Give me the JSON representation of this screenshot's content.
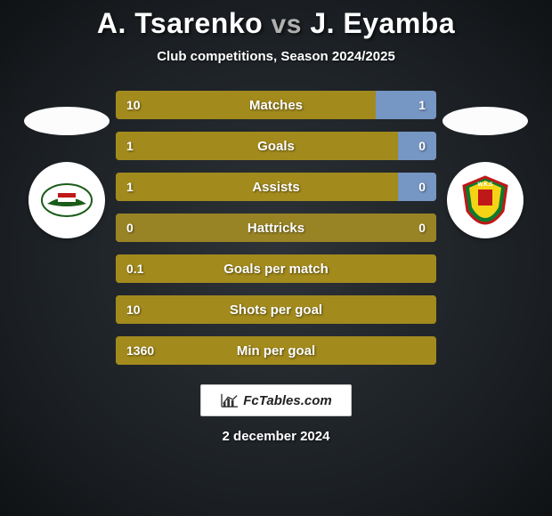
{
  "title_player1": "A. Tsarenko",
  "title_vs": "vs",
  "title_player2": "J. Eyamba",
  "subtitle": "Club competitions, Season 2024/2025",
  "footer_brand": "FcTables.com",
  "footer_date": "2 december 2024",
  "colors": {
    "left_bar": "#a28a1d",
    "right_bar": "#7696c3",
    "bar_bg": "#a28a1d",
    "text": "#ffffff"
  },
  "stats": [
    {
      "label": "Matches",
      "left_val": "10",
      "right_val": "1",
      "left_pct": 81,
      "right_pct": 19,
      "left_color": "#a28a1d",
      "right_color": "#7696c3"
    },
    {
      "label": "Goals",
      "left_val": "1",
      "right_val": "0",
      "left_pct": 88,
      "right_pct": 12,
      "left_color": "#a28a1d",
      "right_color": "#7696c3"
    },
    {
      "label": "Assists",
      "left_val": "1",
      "right_val": "0",
      "left_pct": 88,
      "right_pct": 12,
      "left_color": "#a28a1d",
      "right_color": "#7696c3"
    },
    {
      "label": "Hattricks",
      "left_val": "0",
      "right_val": "0",
      "left_pct": 100,
      "right_pct": 0,
      "left_color": "#998425",
      "right_color": "#7696c3"
    },
    {
      "label": "Goals per match",
      "left_val": "0.1",
      "right_val": "",
      "left_pct": 100,
      "right_pct": 0,
      "left_color": "#a28a1d",
      "right_color": "#7696c3"
    },
    {
      "label": "Shots per goal",
      "left_val": "10",
      "right_val": "",
      "left_pct": 100,
      "right_pct": 0,
      "left_color": "#a28a1d",
      "right_color": "#7696c3"
    },
    {
      "label": "Min per goal",
      "left_val": "1360",
      "right_val": "",
      "left_pct": 100,
      "right_pct": 0,
      "left_color": "#a28a1d",
      "right_color": "#7696c3"
    }
  ]
}
